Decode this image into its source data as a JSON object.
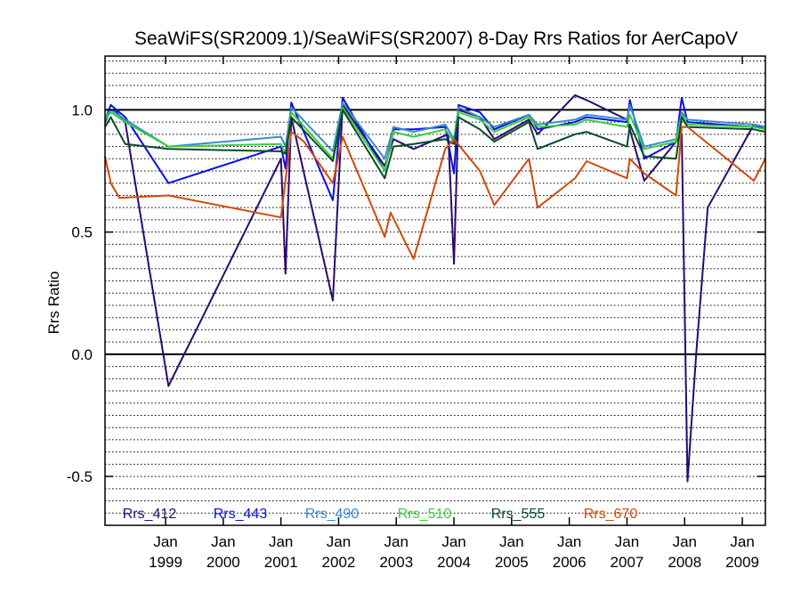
{
  "chart_data": {
    "type": "line",
    "title": "SeaWiFS(SR2009.1)/SeaWiFS(SR2007) 8-Day Rrs Ratios for AerCapoV",
    "ylabel": "Rrs Ratio",
    "xlabel": "",
    "ylim": [
      -0.7,
      1.22
    ],
    "xlim": [
      1997.95,
      2009.4
    ],
    "y_ticks": [
      {
        "value": 1.0,
        "label": "1.0"
      },
      {
        "value": 0.5,
        "label": "0.5"
      },
      {
        "value": 0.0,
        "label": "0.0"
      },
      {
        "value": -0.5,
        "label": "-0.5"
      }
    ],
    "x_ticks": [
      {
        "value": 1999,
        "month": "Jan",
        "year": "1999"
      },
      {
        "value": 2000,
        "month": "Jan",
        "year": "2000"
      },
      {
        "value": 2001,
        "month": "Jan",
        "year": "2001"
      },
      {
        "value": 2002,
        "month": "Jan",
        "year": "2002"
      },
      {
        "value": 2003,
        "month": "Jan",
        "year": "2003"
      },
      {
        "value": 2004,
        "month": "Jan",
        "year": "2004"
      },
      {
        "value": 2005,
        "month": "Jan",
        "year": "2005"
      },
      {
        "value": 2006,
        "month": "Jan",
        "year": "2006"
      },
      {
        "value": 2007,
        "month": "Jan",
        "year": "2007"
      },
      {
        "value": 2008,
        "month": "Jan",
        "year": "2008"
      },
      {
        "value": 2009,
        "month": "Jan",
        "year": "2009"
      }
    ],
    "grid": {
      "solid_y": [
        1.0,
        0.0
      ],
      "dotted_step": 0.05
    },
    "legend_position": "bottom",
    "series": [
      {
        "name": "Rrs_412",
        "color": "#2a0a6e",
        "points": [
          [
            1997.95,
            0.95
          ],
          [
            1998.05,
            1.0
          ],
          [
            1998.15,
            0.99
          ],
          [
            1998.3,
            0.95
          ],
          [
            1999.05,
            -0.13
          ],
          [
            2001.0,
            0.8
          ],
          [
            2001.08,
            0.33
          ],
          [
            2001.18,
            0.97
          ],
          [
            2001.9,
            0.22
          ],
          [
            2002.07,
            1.02
          ],
          [
            2002.8,
            0.77
          ],
          [
            2002.95,
            0.88
          ],
          [
            2003.3,
            0.84
          ],
          [
            2003.9,
            0.9
          ],
          [
            2004.0,
            0.37
          ],
          [
            2004.08,
            1.0
          ],
          [
            2004.45,
            0.97
          ],
          [
            2004.7,
            0.88
          ],
          [
            2005.3,
            0.96
          ],
          [
            2005.45,
            0.9
          ],
          [
            2006.1,
            1.06
          ],
          [
            2006.3,
            1.04
          ],
          [
            2007.0,
            0.96
          ],
          [
            2007.3,
            0.71
          ],
          [
            2007.85,
            0.87
          ],
          [
            2007.95,
            0.9
          ],
          [
            2008.05,
            -0.52
          ],
          [
            2008.2,
            0.0
          ],
          [
            2008.4,
            0.6
          ],
          [
            2009.2,
            0.94
          ],
          [
            2009.4,
            0.93
          ]
        ]
      },
      {
        "name": "Rrs_443",
        "color": "#0a10e0",
        "points": [
          [
            1997.95,
            0.96
          ],
          [
            1998.05,
            1.02
          ],
          [
            1998.3,
            0.97
          ],
          [
            1999.05,
            0.7
          ],
          [
            2001.0,
            0.85
          ],
          [
            2001.08,
            0.76
          ],
          [
            2001.18,
            1.03
          ],
          [
            2001.9,
            0.63
          ],
          [
            2002.07,
            1.05
          ],
          [
            2002.8,
            0.75
          ],
          [
            2002.95,
            0.92
          ],
          [
            2003.3,
            0.92
          ],
          [
            2003.85,
            0.93
          ],
          [
            2004.0,
            0.74
          ],
          [
            2004.08,
            1.02
          ],
          [
            2004.45,
            0.99
          ],
          [
            2004.7,
            0.92
          ],
          [
            2005.3,
            0.98
          ],
          [
            2005.45,
            0.92
          ],
          [
            2006.1,
            0.95
          ],
          [
            2006.3,
            0.97
          ],
          [
            2007.0,
            0.95
          ],
          [
            2007.05,
            1.04
          ],
          [
            2007.3,
            0.8
          ],
          [
            2007.85,
            0.87
          ],
          [
            2007.95,
            1.05
          ],
          [
            2008.05,
            0.95
          ],
          [
            2009.2,
            0.93
          ],
          [
            2009.4,
            0.93
          ]
        ]
      },
      {
        "name": "Rrs_490",
        "color": "#3a8ad0",
        "points": [
          [
            1997.95,
            0.97
          ],
          [
            1998.05,
            1.0
          ],
          [
            1998.3,
            0.96
          ],
          [
            1999.05,
            0.85
          ],
          [
            2001.0,
            0.89
          ],
          [
            2001.08,
            0.85
          ],
          [
            2001.18,
            1.01
          ],
          [
            2001.9,
            0.83
          ],
          [
            2002.07,
            1.03
          ],
          [
            2002.8,
            0.8
          ],
          [
            2002.95,
            0.93
          ],
          [
            2003.3,
            0.91
          ],
          [
            2003.85,
            0.94
          ],
          [
            2004.0,
            0.88
          ],
          [
            2004.08,
            1.01
          ],
          [
            2004.45,
            0.97
          ],
          [
            2004.7,
            0.93
          ],
          [
            2005.3,
            0.98
          ],
          [
            2005.45,
            0.94
          ],
          [
            2006.1,
            0.96
          ],
          [
            2006.3,
            0.98
          ],
          [
            2007.0,
            0.96
          ],
          [
            2007.05,
            1.02
          ],
          [
            2007.3,
            0.85
          ],
          [
            2007.85,
            0.88
          ],
          [
            2007.95,
            0.99
          ],
          [
            2008.05,
            0.96
          ],
          [
            2009.2,
            0.94
          ],
          [
            2009.4,
            0.93
          ]
        ]
      },
      {
        "name": "Rrs_510",
        "color": "#38d038",
        "points": [
          [
            1997.95,
            0.96
          ],
          [
            1998.05,
            0.99
          ],
          [
            1998.3,
            0.95
          ],
          [
            1999.05,
            0.85
          ],
          [
            2001.0,
            0.86
          ],
          [
            2001.08,
            0.82
          ],
          [
            2001.18,
            0.99
          ],
          [
            2001.9,
            0.8
          ],
          [
            2002.07,
            1.01
          ],
          [
            2002.8,
            0.75
          ],
          [
            2002.95,
            0.91
          ],
          [
            2003.3,
            0.89
          ],
          [
            2003.85,
            0.92
          ],
          [
            2004.0,
            0.87
          ],
          [
            2004.08,
            0.99
          ],
          [
            2004.45,
            0.96
          ],
          [
            2004.7,
            0.91
          ],
          [
            2005.3,
            0.97
          ],
          [
            2005.45,
            0.93
          ],
          [
            2006.1,
            0.94
          ],
          [
            2006.3,
            0.96
          ],
          [
            2007.0,
            0.93
          ],
          [
            2007.05,
            0.98
          ],
          [
            2007.3,
            0.84
          ],
          [
            2007.85,
            0.87
          ],
          [
            2007.95,
            0.98
          ],
          [
            2008.05,
            0.94
          ],
          [
            2009.2,
            0.93
          ],
          [
            2009.4,
            0.92
          ]
        ]
      },
      {
        "name": "Rrs_555",
        "color": "#0a4a2a",
        "points": [
          [
            1997.95,
            0.93
          ],
          [
            1998.05,
            0.97
          ],
          [
            1998.3,
            0.86
          ],
          [
            1999.05,
            0.84
          ],
          [
            2001.0,
            0.83
          ],
          [
            2001.08,
            0.82
          ],
          [
            2001.18,
            0.97
          ],
          [
            2001.9,
            0.79
          ],
          [
            2002.07,
            1.0
          ],
          [
            2002.8,
            0.72
          ],
          [
            2002.95,
            0.85
          ],
          [
            2003.3,
            0.86
          ],
          [
            2003.85,
            0.88
          ],
          [
            2004.0,
            0.86
          ],
          [
            2004.08,
            0.97
          ],
          [
            2004.45,
            0.92
          ],
          [
            2004.7,
            0.87
          ],
          [
            2005.3,
            0.95
          ],
          [
            2005.45,
            0.84
          ],
          [
            2006.1,
            0.9
          ],
          [
            2006.3,
            0.91
          ],
          [
            2007.0,
            0.85
          ],
          [
            2007.05,
            0.94
          ],
          [
            2007.3,
            0.81
          ],
          [
            2007.85,
            0.8
          ],
          [
            2007.95,
            0.97
          ],
          [
            2008.05,
            0.93
          ],
          [
            2009.2,
            0.92
          ],
          [
            2009.4,
            0.91
          ]
        ]
      },
      {
        "name": "Rrs_670",
        "color": "#d04a0a",
        "points": [
          [
            1997.95,
            0.81
          ],
          [
            1998.05,
            0.7
          ],
          [
            1998.2,
            0.64
          ],
          [
            1999.05,
            0.65
          ],
          [
            2001.0,
            0.56
          ],
          [
            2001.18,
            0.91
          ],
          [
            2001.4,
            0.87
          ],
          [
            2001.9,
            0.7
          ],
          [
            2002.07,
            0.89
          ],
          [
            2002.8,
            0.48
          ],
          [
            2002.9,
            0.58
          ],
          [
            2003.3,
            0.39
          ],
          [
            2003.85,
            0.84
          ],
          [
            2004.0,
            0.88
          ],
          [
            2004.45,
            0.75
          ],
          [
            2004.7,
            0.61
          ],
          [
            2005.3,
            0.8
          ],
          [
            2005.45,
            0.6
          ],
          [
            2006.1,
            0.72
          ],
          [
            2006.3,
            0.79
          ],
          [
            2007.0,
            0.72
          ],
          [
            2007.05,
            0.8
          ],
          [
            2007.3,
            0.74
          ],
          [
            2007.85,
            0.65
          ],
          [
            2007.95,
            0.93
          ],
          [
            2008.05,
            0.93
          ],
          [
            2009.2,
            0.71
          ],
          [
            2009.4,
            0.8
          ]
        ]
      }
    ]
  }
}
